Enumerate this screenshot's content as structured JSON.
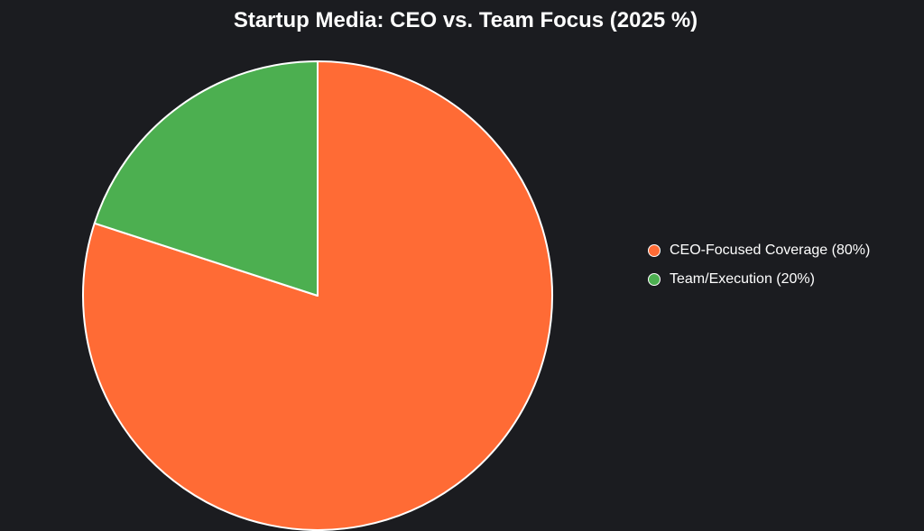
{
  "chart_data": {
    "type": "pie",
    "title": "Startup Media: CEO vs. Team Focus (2025 %)",
    "slices": [
      {
        "label": "CEO-Focused Coverage",
        "value": 80,
        "color": "#ff6b35",
        "legend_text": "CEO-Focused Coverage (80%)"
      },
      {
        "label": "Team/Execution",
        "value": 20,
        "color": "#4caf50",
        "legend_text": "Team/Execution (20%)"
      }
    ],
    "start_angle_deg": 0,
    "direction": "clockwise",
    "legend_position": "right",
    "slice_border_color": "#ffffff"
  },
  "colors": {
    "background": "#1b1c20",
    "text": "#ffffff"
  }
}
